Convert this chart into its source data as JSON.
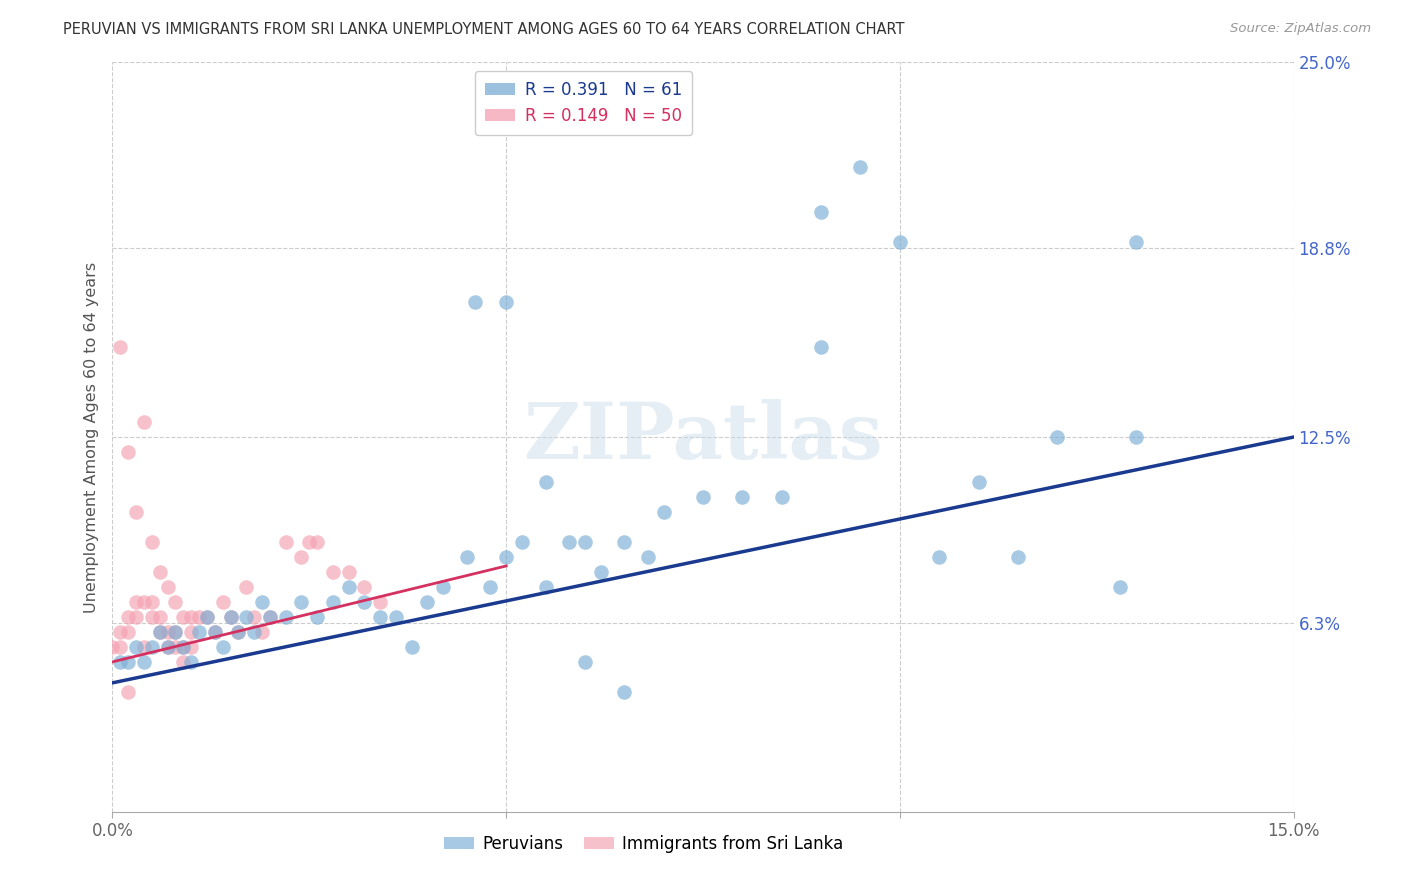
{
  "title": "PERUVIAN VS IMMIGRANTS FROM SRI LANKA UNEMPLOYMENT AMONG AGES 60 TO 64 YEARS CORRELATION CHART",
  "source": "Source: ZipAtlas.com",
  "ylabel": "Unemployment Among Ages 60 to 64 years",
  "xlim": [
    0.0,
    0.15
  ],
  "ylim": [
    0.0,
    0.25
  ],
  "xtick_positions": [
    0.0,
    0.05,
    0.1,
    0.15
  ],
  "xtick_labels": [
    "0.0%",
    "",
    "",
    "15.0%"
  ],
  "ytick_labels_right": [
    "25.0%",
    "18.8%",
    "12.5%",
    "6.3%"
  ],
  "yticks_right": [
    0.25,
    0.188,
    0.125,
    0.063
  ],
  "background_color": "#ffffff",
  "grid_color": "#cccccc",
  "blue_color": "#7aadd4",
  "pink_color": "#f4a0b0",
  "blue_line_color": "#1a3a8f",
  "pink_line_color": "#d43060",
  "legend_blue_R": "R = 0.391",
  "legend_blue_N": "N = 61",
  "legend_pink_R": "R = 0.149",
  "legend_pink_N": "N = 50",
  "watermark": "ZIPatlas",
  "blue_trend_x": [
    0.0,
    0.15
  ],
  "blue_trend_y": [
    0.043,
    0.125
  ],
  "pink_trend_x": [
    0.0,
    0.05
  ],
  "pink_trend_y": [
    0.05,
    0.082
  ],
  "peru_x": [
    0.001,
    0.002,
    0.003,
    0.004,
    0.005,
    0.006,
    0.007,
    0.008,
    0.009,
    0.01,
    0.011,
    0.012,
    0.013,
    0.014,
    0.015,
    0.016,
    0.017,
    0.018,
    0.019,
    0.02,
    0.022,
    0.024,
    0.026,
    0.028,
    0.03,
    0.032,
    0.034,
    0.036,
    0.038,
    0.04,
    0.042,
    0.045,
    0.048,
    0.05,
    0.052,
    0.055,
    0.058,
    0.06,
    0.062,
    0.065,
    0.068,
    0.07,
    0.075,
    0.08,
    0.085,
    0.09,
    0.095,
    0.1,
    0.105,
    0.11,
    0.115,
    0.12,
    0.128,
    0.13,
    0.046,
    0.05,
    0.055,
    0.06,
    0.065,
    0.09,
    0.13
  ],
  "peru_y": [
    0.05,
    0.05,
    0.055,
    0.05,
    0.055,
    0.06,
    0.055,
    0.06,
    0.055,
    0.05,
    0.06,
    0.065,
    0.06,
    0.055,
    0.065,
    0.06,
    0.065,
    0.06,
    0.07,
    0.065,
    0.065,
    0.07,
    0.065,
    0.07,
    0.075,
    0.07,
    0.065,
    0.065,
    0.055,
    0.07,
    0.075,
    0.085,
    0.075,
    0.085,
    0.09,
    0.075,
    0.09,
    0.09,
    0.08,
    0.09,
    0.085,
    0.1,
    0.105,
    0.105,
    0.105,
    0.2,
    0.215,
    0.19,
    0.085,
    0.11,
    0.085,
    0.125,
    0.075,
    0.19,
    0.17,
    0.17,
    0.11,
    0.05,
    0.04,
    0.155,
    0.125
  ],
  "sri_x": [
    0.0,
    0.001,
    0.001,
    0.002,
    0.002,
    0.003,
    0.003,
    0.004,
    0.004,
    0.005,
    0.005,
    0.006,
    0.006,
    0.007,
    0.007,
    0.008,
    0.008,
    0.009,
    0.009,
    0.01,
    0.01,
    0.011,
    0.012,
    0.013,
    0.014,
    0.015,
    0.016,
    0.017,
    0.018,
    0.019,
    0.02,
    0.022,
    0.024,
    0.026,
    0.028,
    0.03,
    0.032,
    0.034,
    0.001,
    0.002,
    0.003,
    0.004,
    0.005,
    0.006,
    0.007,
    0.008,
    0.009,
    0.01,
    0.002,
    0.025
  ],
  "sri_y": [
    0.055,
    0.055,
    0.06,
    0.06,
    0.065,
    0.065,
    0.07,
    0.07,
    0.055,
    0.065,
    0.07,
    0.065,
    0.06,
    0.06,
    0.055,
    0.055,
    0.06,
    0.055,
    0.05,
    0.055,
    0.06,
    0.065,
    0.065,
    0.06,
    0.07,
    0.065,
    0.06,
    0.075,
    0.065,
    0.06,
    0.065,
    0.09,
    0.085,
    0.09,
    0.08,
    0.08,
    0.075,
    0.07,
    0.155,
    0.12,
    0.1,
    0.13,
    0.09,
    0.08,
    0.075,
    0.07,
    0.065,
    0.065,
    0.04,
    0.09
  ]
}
